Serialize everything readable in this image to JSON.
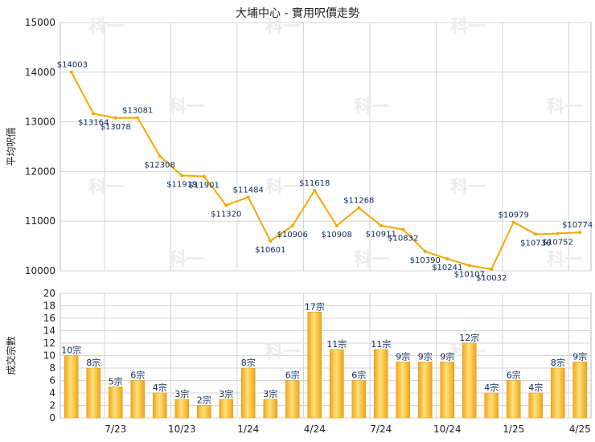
{
  "title": "大埔中心 - 實用呎價走勢",
  "chart_data": [
    {
      "type": "line",
      "ylabel": "平均呎價",
      "ylim": [
        10000,
        15000
      ],
      "yticks": [
        "15000",
        "14000",
        "13000",
        "12000",
        "11000",
        "10000"
      ],
      "color": "#f5a800",
      "values": [
        14003,
        13164,
        13078,
        13081,
        12308,
        11919,
        11901,
        11320,
        11484,
        10601,
        10906,
        11618,
        10908,
        11268,
        10911,
        10832,
        10390,
        10241,
        10107,
        10032,
        10979,
        10736,
        10752,
        10774
      ],
      "labels": [
        "$14003",
        "$13164",
        "$13078",
        "$13081",
        "$12308",
        "$11919",
        "$11901",
        "$11320",
        "$11484",
        "$10601",
        "$10906",
        "$11618",
        "$10908",
        "$11268",
        "$10911",
        "$10832",
        "$10390",
        "$10241",
        "$10107",
        "$10032",
        "$10979",
        "$10736",
        "$10752",
        "$10774"
      ]
    },
    {
      "type": "bar",
      "ylabel": "成交宗數",
      "ylim": [
        0,
        20
      ],
      "yticks": [
        "20",
        "18",
        "16",
        "14",
        "12",
        "10",
        "8",
        "6",
        "4",
        "2",
        "0"
      ],
      "color": "#f5b21c",
      "values": [
        10,
        8,
        5,
        6,
        4,
        3,
        2,
        3,
        8,
        3,
        6,
        17,
        11,
        6,
        11,
        9,
        9,
        9,
        12,
        4,
        6,
        4,
        8,
        9
      ],
      "labels": [
        "10宗",
        "8宗",
        "5宗",
        "6宗",
        "4宗",
        "3宗",
        "2宗",
        "3宗",
        "8宗",
        "3宗",
        "6宗",
        "17宗",
        "11宗",
        "6宗",
        "11宗",
        "9宗",
        "9宗",
        "9宗",
        "12宗",
        "4宗",
        "6宗",
        "4宗",
        "8宗",
        "9宗"
      ],
      "xticks": [
        "7/23",
        "10/23",
        "1/24",
        "4/24",
        "7/24",
        "10/24",
        "1/25",
        "4/25"
      ]
    }
  ],
  "watermark": "科一"
}
